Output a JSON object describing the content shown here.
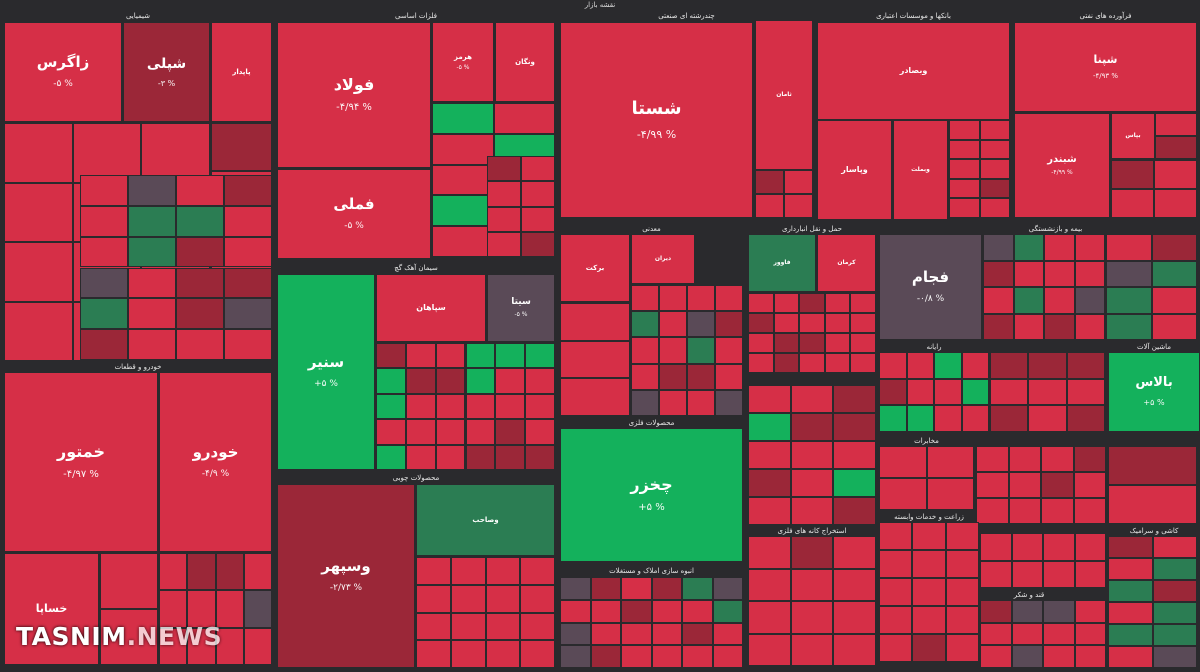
{
  "title": "نقشه بازار",
  "watermark": {
    "main": "TASNIM",
    "sub": ".NEWS"
  },
  "colors": {
    "down": "#d62f47",
    "down_dark": "#9b2738",
    "flat": "#5a4a57",
    "up": "#14b15c",
    "up_dark": "#2b7d53",
    "bg": "#2a2a2d"
  },
  "chart_data": {
    "type": "treemap",
    "sectors": [
      "شیمیایی",
      "فلزات اساسی",
      "چندرشته ای صنعتی",
      "بانکها و موسسات اعتباری",
      "فرآورده های نفتی",
      "خودرو و قطعات",
      "سیمان آهک گچ",
      "محصولات چوبی",
      "معدنی",
      "محصولات فلزی",
      "بیمه و بازنشستگی",
      "انبوه سازی املاک و مستغلات",
      "حمل و نقل انبارداری",
      "رایانه",
      "ماشین آلات",
      "استخراج کانه های فلزی",
      "مخابرات",
      "زراعت و خدمات وابسته",
      "قند و شکر",
      "کاشی و سرامیک"
    ],
    "tiles": [
      {
        "name": "زاگرس",
        "change": "-۵ %",
        "color": "down"
      },
      {
        "name": "شپلی",
        "change": "-۳ %",
        "color": "down_dark"
      },
      {
        "name": "پاپدار",
        "change": "",
        "color": "down"
      },
      {
        "name": "فولاد",
        "change": "-۴/۹۴ %",
        "color": "down"
      },
      {
        "name": "هرمز",
        "change": "-۵ %",
        "color": "down"
      },
      {
        "name": "ونگان",
        "change": "",
        "color": "down"
      },
      {
        "name": "فملی",
        "change": "-۵ %",
        "color": "down"
      },
      {
        "name": "شستا",
        "change": "-۴/۹۹ %",
        "color": "down"
      },
      {
        "name": "وبصادر",
        "change": "",
        "color": "down"
      },
      {
        "name": "شپنا",
        "change": "-۴/۹۳ %",
        "color": "down"
      },
      {
        "name": "شبندر",
        "change": "-۴/۹۹ %",
        "color": "down"
      },
      {
        "name": "خمتور",
        "change": "-۴/۹۷ %",
        "color": "down"
      },
      {
        "name": "خودرو",
        "change": "-۴/۹ %",
        "color": "down"
      },
      {
        "name": "خساپا",
        "change": "",
        "color": "down"
      },
      {
        "name": "سنیر",
        "change": "+۵ %",
        "color": "up"
      },
      {
        "name": "سپاهان",
        "change": "",
        "color": "down"
      },
      {
        "name": "سیتا",
        "change": "-۵ %",
        "color": "flat"
      },
      {
        "name": "وسپهر",
        "change": "-۲/۷۳ %",
        "color": "down_dark"
      },
      {
        "name": "وصاحب",
        "change": "",
        "color": "up_dark"
      },
      {
        "name": "چخزر",
        "change": "+۵ %",
        "color": "up"
      },
      {
        "name": "فجام",
        "change": "-۰/۸ %",
        "color": "flat"
      },
      {
        "name": "بالاس",
        "change": "+۵ %",
        "color": "up"
      },
      {
        "name": "ثامان",
        "change": "",
        "color": "down"
      },
      {
        "name": "وپاسار",
        "change": "",
        "color": "down"
      },
      {
        "name": "فاوور",
        "change": "",
        "color": "up_dark"
      },
      {
        "name": "کرمان",
        "change": "",
        "color": "down"
      },
      {
        "name": "برکت",
        "change": "",
        "color": "down"
      },
      {
        "name": "دیران",
        "change": "",
        "color": "down"
      },
      {
        "name": "وبملت",
        "change": "",
        "color": "down"
      },
      {
        "name": "بپاس",
        "change": "",
        "color": "down"
      }
    ]
  }
}
